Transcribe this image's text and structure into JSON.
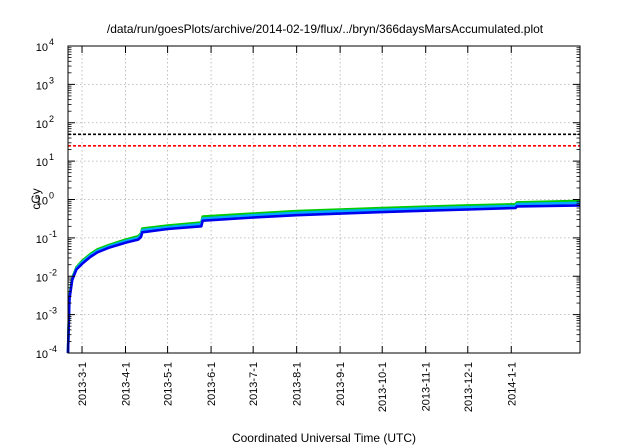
{
  "chart_data": {
    "type": "line",
    "title": "/data/run/goesPlots/archive/2014-02-19/flux/../bryn/366daysMarsAccumulated.plot",
    "xlabel": "Coordinated Universal Time (UTC)",
    "ylabel": "cGy",
    "y_scale": "log",
    "ylim": [
      0.0001,
      10000
    ],
    "xlim": [
      "2013-02-19",
      "2014-02-19"
    ],
    "grid": true,
    "legend": "none",
    "y_ticks": [
      {
        "value": 0.0001,
        "base": "10",
        "exp": "-4"
      },
      {
        "value": 0.001,
        "base": "10",
        "exp": "-3"
      },
      {
        "value": 0.01,
        "base": "10",
        "exp": "-2"
      },
      {
        "value": 0.1,
        "base": "10",
        "exp": "-1"
      },
      {
        "value": 1,
        "base": "10",
        "exp": "0"
      },
      {
        "value": 10,
        "base": "10",
        "exp": "1"
      },
      {
        "value": 100,
        "base": "10",
        "exp": "2"
      },
      {
        "value": 1000,
        "base": "10",
        "exp": "3"
      },
      {
        "value": 10000,
        "base": "10",
        "exp": "4"
      }
    ],
    "x_ticks": [
      "2013-3-1",
      "2013-4-1",
      "2013-5-1",
      "2013-6-1",
      "2013-7-1",
      "2013-8-1",
      "2013-9-1",
      "2013-10-1",
      "2013-11-1",
      "2013-12-1",
      "2014-1-1"
    ],
    "reference_lines": [
      {
        "value": 50,
        "color": "#000000",
        "style": "dashed"
      },
      {
        "value": 25,
        "color": "#ff0000",
        "style": "dashed"
      }
    ],
    "series": [
      {
        "color": "#00cc00",
        "points": [
          [
            "2013-02-19",
            0.0001
          ],
          [
            "2013-02-20",
            0.003
          ],
          [
            "2013-02-22",
            0.009
          ],
          [
            "2013-02-25",
            0.017
          ],
          [
            "2013-03-01",
            0.025
          ],
          [
            "2013-03-07",
            0.038
          ],
          [
            "2013-03-12",
            0.05
          ],
          [
            "2013-03-20",
            0.065
          ],
          [
            "2013-04-01",
            0.09
          ],
          [
            "2013-04-10",
            0.11
          ],
          [
            "2013-04-12",
            0.13
          ],
          [
            "2013-04-13",
            0.175
          ],
          [
            "2013-05-01",
            0.21
          ],
          [
            "2013-05-25",
            0.25
          ],
          [
            "2013-05-26",
            0.36
          ],
          [
            "2013-07-01",
            0.43
          ],
          [
            "2013-08-01",
            0.5
          ],
          [
            "2013-09-01",
            0.55
          ],
          [
            "2013-10-01",
            0.6
          ],
          [
            "2013-11-01",
            0.65
          ],
          [
            "2013-12-01",
            0.7
          ],
          [
            "2014-01-04",
            0.75
          ],
          [
            "2014-01-05",
            0.84
          ],
          [
            "2014-02-19",
            0.92
          ]
        ]
      },
      {
        "color": "#00aaff",
        "points": [
          [
            "2013-02-19",
            0.0001
          ],
          [
            "2013-02-20",
            0.0028
          ],
          [
            "2013-02-22",
            0.0085
          ],
          [
            "2013-02-25",
            0.016
          ],
          [
            "2013-03-01",
            0.023
          ],
          [
            "2013-03-07",
            0.035
          ],
          [
            "2013-03-12",
            0.046
          ],
          [
            "2013-03-20",
            0.06
          ],
          [
            "2013-04-01",
            0.083
          ],
          [
            "2013-04-10",
            0.1
          ],
          [
            "2013-04-12",
            0.12
          ],
          [
            "2013-04-13",
            0.16
          ],
          [
            "2013-05-01",
            0.19
          ],
          [
            "2013-05-25",
            0.23
          ],
          [
            "2013-05-26",
            0.32
          ],
          [
            "2013-07-01",
            0.39
          ],
          [
            "2013-08-01",
            0.45
          ],
          [
            "2013-09-01",
            0.5
          ],
          [
            "2013-10-01",
            0.54
          ],
          [
            "2013-11-01",
            0.59
          ],
          [
            "2013-12-01",
            0.63
          ],
          [
            "2014-01-04",
            0.68
          ],
          [
            "2014-01-05",
            0.76
          ],
          [
            "2014-02-19",
            0.82
          ]
        ]
      },
      {
        "color": "#0000ee",
        "points": [
          [
            "2013-02-19",
            0.0001
          ],
          [
            "2013-02-20",
            0.0025
          ],
          [
            "2013-02-22",
            0.008
          ],
          [
            "2013-02-25",
            0.015
          ],
          [
            "2013-03-01",
            0.021
          ],
          [
            "2013-03-07",
            0.032
          ],
          [
            "2013-03-12",
            0.042
          ],
          [
            "2013-03-20",
            0.055
          ],
          [
            "2013-04-01",
            0.075
          ],
          [
            "2013-04-10",
            0.09
          ],
          [
            "2013-04-12",
            0.105
          ],
          [
            "2013-04-13",
            0.14
          ],
          [
            "2013-05-01",
            0.17
          ],
          [
            "2013-05-25",
            0.2
          ],
          [
            "2013-05-26",
            0.28
          ],
          [
            "2013-07-01",
            0.34
          ],
          [
            "2013-08-01",
            0.39
          ],
          [
            "2013-09-01",
            0.43
          ],
          [
            "2013-10-01",
            0.47
          ],
          [
            "2013-11-01",
            0.51
          ],
          [
            "2013-12-01",
            0.55
          ],
          [
            "2014-01-04",
            0.6
          ],
          [
            "2014-01-05",
            0.66
          ],
          [
            "2014-02-19",
            0.7
          ]
        ]
      }
    ]
  }
}
